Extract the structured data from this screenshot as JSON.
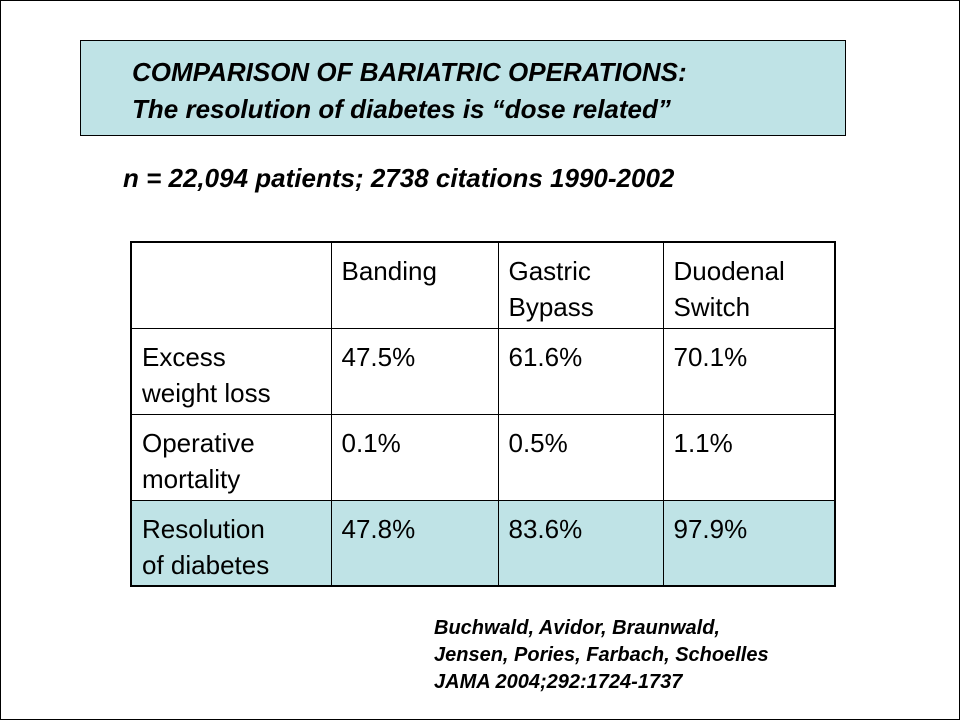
{
  "title": {
    "line1": "COMPARISON OF BARIATRIC OPERATIONS:",
    "line2": "The resolution of diabetes is “dose related”"
  },
  "subtitle": "n = 22,094 patients; 2738 citations 1990-2002",
  "table": {
    "headers": [
      "",
      "Banding",
      "Gastric Bypass",
      "Duodenal Switch"
    ],
    "header_lines": [
      [
        ""
      ],
      [
        "Banding"
      ],
      [
        "Gastric",
        "Bypass"
      ],
      [
        "Duodenal",
        "Switch"
      ]
    ],
    "rows": [
      {
        "label_lines": [
          "Excess",
          "weight loss"
        ],
        "values": [
          "47.5%",
          "61.6%",
          "70.1%"
        ]
      },
      {
        "label_lines": [
          "Operative",
          "mortality"
        ],
        "values": [
          "0.1%",
          "0.5%",
          "1.1%"
        ]
      },
      {
        "label_lines": [
          "Resolution",
          "of diabetes"
        ],
        "values": [
          "47.8%",
          "83.6%",
          "97.9%"
        ]
      }
    ]
  },
  "citation": {
    "line1": "Buchwald, Avidor, Braunwald,",
    "line2": "Jensen, Pories, Farbach, Schoelles",
    "line3": "JAMA 2004;292:1724-1737"
  },
  "colors": {
    "highlight": "#bfe3e6",
    "border": "#000000",
    "text": "#000000"
  }
}
